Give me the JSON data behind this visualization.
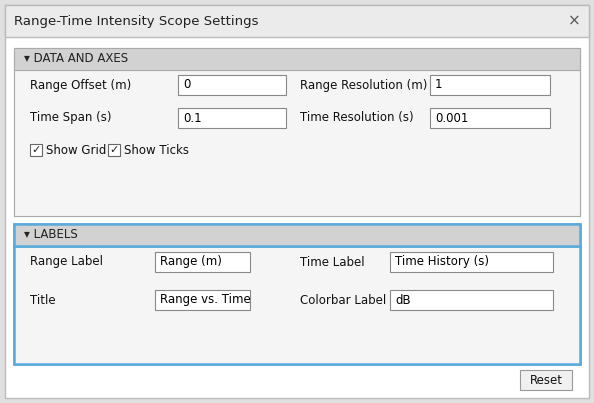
{
  "title": "Range-Time Intensity Scope Settings",
  "bg_color": "#e0e0e0",
  "dialog_bg": "#ffffff",
  "titlebar_bg": "#ebebeb",
  "panel_bg": "#d8d8d8",
  "panel_inner_bg": "#f5f5f5",
  "section2_border": "#5aabdb",
  "white": "#ffffff",
  "section1_header": "▾ DATA AND AXES",
  "section2_header": "▾ LABELS",
  "fields": {
    "range_offset_label": "Range Offset (m)",
    "range_offset_value": "0",
    "range_resolution_label": "Range Resolution (m)",
    "range_resolution_value": "1",
    "time_span_label": "Time Span (s)",
    "time_span_value": "0.1",
    "time_resolution_label": "Time Resolution (s)",
    "time_resolution_value": "0.001",
    "show_grid": "Show Grid",
    "show_ticks": "Show Ticks",
    "range_label_label": "Range Label",
    "range_label_value": "Range (m)",
    "time_label_label": "Time Label",
    "time_label_value": "Time History (s)",
    "title_label": "Title",
    "title_value": "Range vs. Time",
    "colorbar_label_label": "Colorbar Label",
    "colorbar_label_value": "dB",
    "reset_button": "Reset"
  },
  "close_x": "×",
  "font_size": 8.5,
  "title_font_size": 9.5
}
